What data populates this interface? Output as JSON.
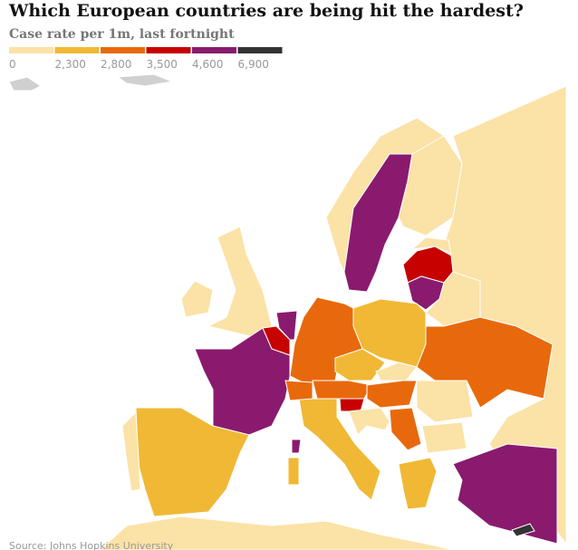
{
  "header": {
    "title": "Which European countries are being hit the hardest?",
    "subtitle": "Case rate per 1m, last fortnight"
  },
  "legend": [
    {
      "label": "0",
      "color": "#fbe2a6"
    },
    {
      "label": "2,300",
      "color": "#f0b834"
    },
    {
      "label": "2,800",
      "color": "#e8690c"
    },
    {
      "label": "3,500",
      "color": "#c70000"
    },
    {
      "label": "4,600",
      "color": "#8a1a6e"
    },
    {
      "label": "6,900",
      "color": "#333333"
    }
  ],
  "footer": {
    "source": "Source: Johns Hopkins University"
  }
}
